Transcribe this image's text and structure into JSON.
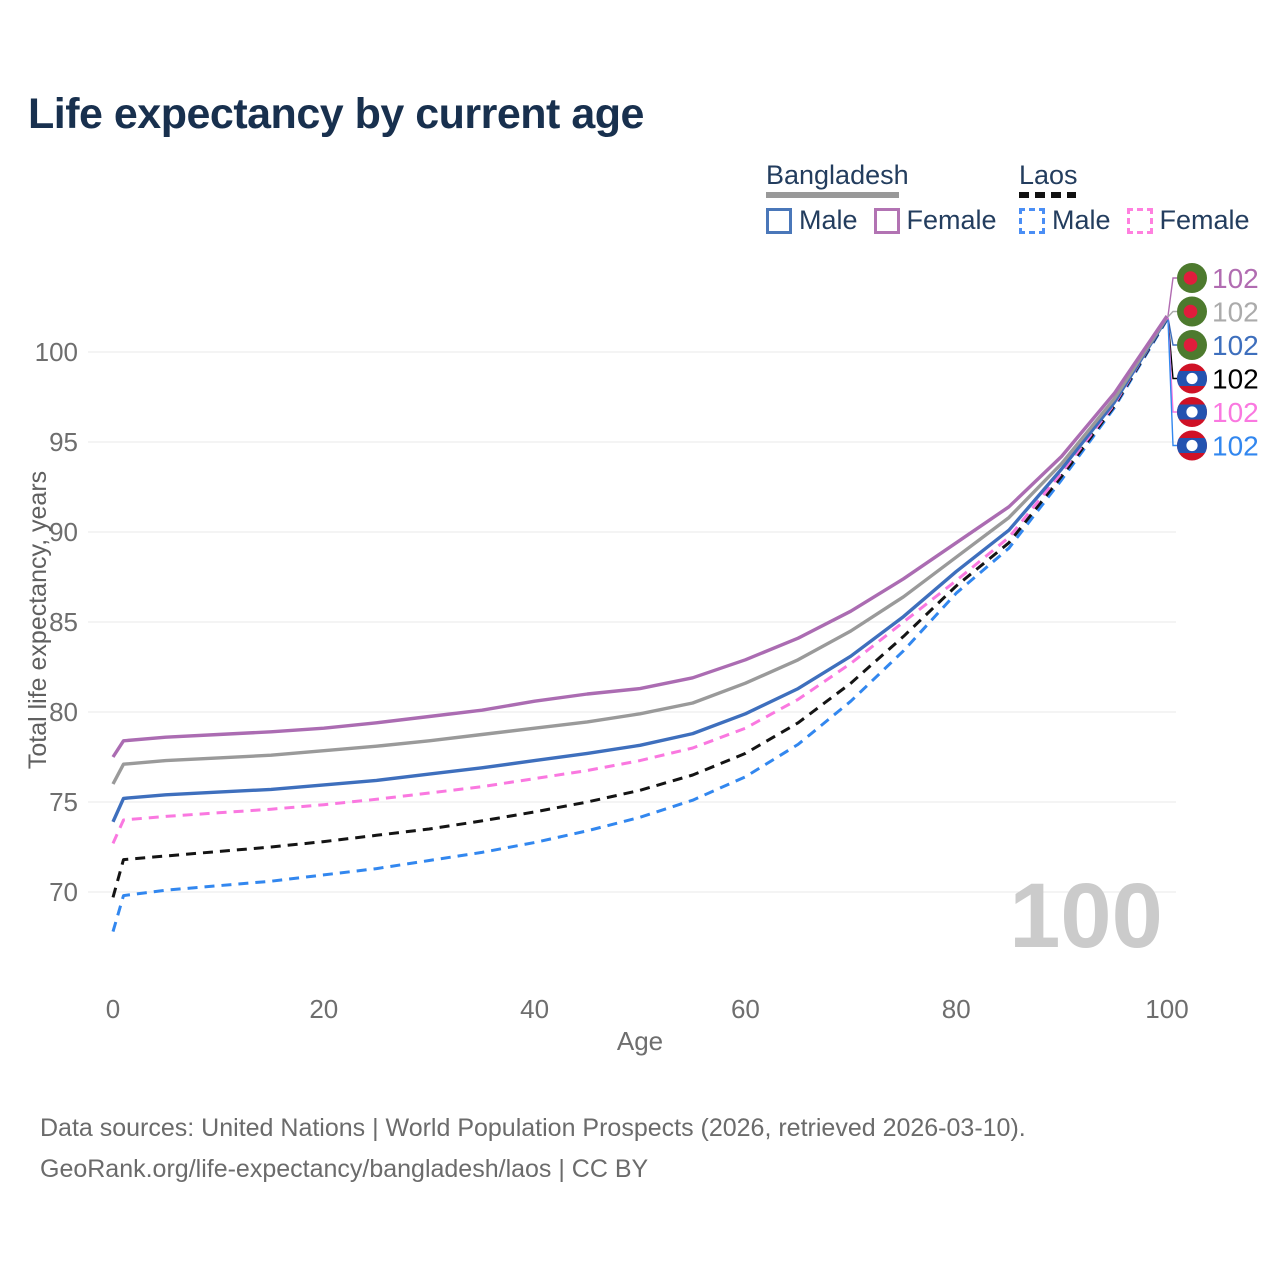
{
  "title": "Life expectancy by current age",
  "legend": {
    "bangladesh": {
      "label": "Bangladesh",
      "line_style": "solid",
      "line_color": "#999999",
      "items": [
        {
          "label": "Male",
          "swatch_color": "#4a77b9",
          "swatch_style": "solid"
        },
        {
          "label": "Female",
          "swatch_color": "#b273b3",
          "swatch_style": "solid"
        }
      ]
    },
    "laos": {
      "label": "Laos",
      "line_style": "dashed",
      "line_color": "#111111",
      "items": [
        {
          "label": "Male",
          "swatch_color": "#4a8ef5",
          "swatch_style": "dashed"
        },
        {
          "label": "Female",
          "swatch_color": "#ff80df",
          "swatch_style": "dashed"
        }
      ]
    }
  },
  "watermark_age": "100",
  "footer": {
    "line1": "Data sources: United Nations | World Population Prospects (2026, retrieved 2026-03-10).",
    "line2": "GeoRank.org/life-expectancy/bangladesh/laos | CC BY"
  },
  "chart_data": {
    "type": "line",
    "title": "Life expectancy by current age",
    "xlabel": "Age",
    "ylabel": "Total life expectancy, years",
    "xlim": [
      0,
      100
    ],
    "ylim": [
      67,
      103
    ],
    "xticks": [
      0,
      20,
      40,
      60,
      80,
      100
    ],
    "yticks": [
      70,
      75,
      80,
      85,
      90,
      95,
      100
    ],
    "grid": true,
    "legend_position": "top-right",
    "x": [
      0,
      1,
      5,
      10,
      15,
      20,
      25,
      30,
      35,
      40,
      45,
      50,
      55,
      60,
      65,
      70,
      75,
      80,
      85,
      90,
      95,
      100
    ],
    "series": [
      {
        "name": "Bangladesh — Female",
        "country": "Bangladesh",
        "sex": "Female",
        "style": "solid",
        "color": "#ab6cb2",
        "label_color": "#b16cb1",
        "flag": "bangladesh",
        "end_label": "102",
        "values": [
          77.5,
          78.4,
          78.6,
          78.75,
          78.9,
          79.1,
          79.4,
          79.75,
          80.1,
          80.6,
          81.0,
          81.3,
          81.9,
          82.9,
          84.1,
          85.6,
          87.4,
          89.4,
          91.4,
          94.2,
          97.7,
          102.0
        ]
      },
      {
        "name": "Bangladesh — Both sexes",
        "country": "Bangladesh",
        "sex": "Both sexes",
        "style": "solid",
        "color": "#9a9a9a",
        "label_color": "#ababab",
        "flag": "bangladesh",
        "end_label": "102",
        "values": [
          76.0,
          77.1,
          77.3,
          77.45,
          77.6,
          77.85,
          78.1,
          78.4,
          78.75,
          79.1,
          79.45,
          79.9,
          80.5,
          81.6,
          82.9,
          84.5,
          86.4,
          88.6,
          90.8,
          93.8,
          97.4,
          101.95
        ]
      },
      {
        "name": "Bangladesh — Male",
        "country": "Bangladesh",
        "sex": "Male",
        "style": "solid",
        "color": "#3e6fbd",
        "label_color": "#3e6fbd",
        "flag": "bangladesh",
        "end_label": "102",
        "values": [
          73.9,
          75.2,
          75.4,
          75.55,
          75.7,
          75.95,
          76.2,
          76.55,
          76.9,
          77.3,
          77.7,
          78.15,
          78.8,
          79.9,
          81.3,
          83.1,
          85.3,
          87.8,
          90.1,
          93.5,
          97.2,
          101.9
        ]
      },
      {
        "name": "Laos — Both sexes",
        "country": "Laos",
        "sex": "Both sexes",
        "style": "dashed",
        "color": "#141414",
        "label_color": "#000000",
        "flag": "laos",
        "end_label": "102",
        "values": [
          69.7,
          71.8,
          72.0,
          72.25,
          72.5,
          72.8,
          73.15,
          73.5,
          73.95,
          74.45,
          75.0,
          75.65,
          76.5,
          77.7,
          79.4,
          81.6,
          84.2,
          87.0,
          89.4,
          93.1,
          97.0,
          101.85
        ]
      },
      {
        "name": "Laos — Female",
        "country": "Laos",
        "sex": "Female",
        "style": "dashed",
        "color": "#fa78e0",
        "label_color": "#fa78e0",
        "flag": "laos",
        "end_label": "102",
        "values": [
          72.7,
          74.0,
          74.2,
          74.4,
          74.6,
          74.85,
          75.15,
          75.5,
          75.85,
          76.3,
          76.75,
          77.3,
          78.0,
          79.1,
          80.7,
          82.7,
          85.0,
          87.3,
          89.7,
          93.3,
          97.1,
          101.9
        ]
      },
      {
        "name": "Laos — Male",
        "country": "Laos",
        "sex": "Male",
        "style": "dashed",
        "color": "#3287ef",
        "label_color": "#3287ef",
        "flag": "laos",
        "end_label": "102",
        "values": [
          67.8,
          69.8,
          70.1,
          70.35,
          70.6,
          70.95,
          71.3,
          71.75,
          72.2,
          72.75,
          73.4,
          74.15,
          75.1,
          76.4,
          78.2,
          80.6,
          83.4,
          86.6,
          89.1,
          92.9,
          96.9,
          101.8
        ]
      }
    ],
    "end_label_order_top_to_bottom": [
      "Bangladesh — Female",
      "Bangladesh — Both sexes",
      "Bangladesh — Male",
      "Laos — Both sexes",
      "Laos — Female",
      "Laos — Male"
    ]
  }
}
